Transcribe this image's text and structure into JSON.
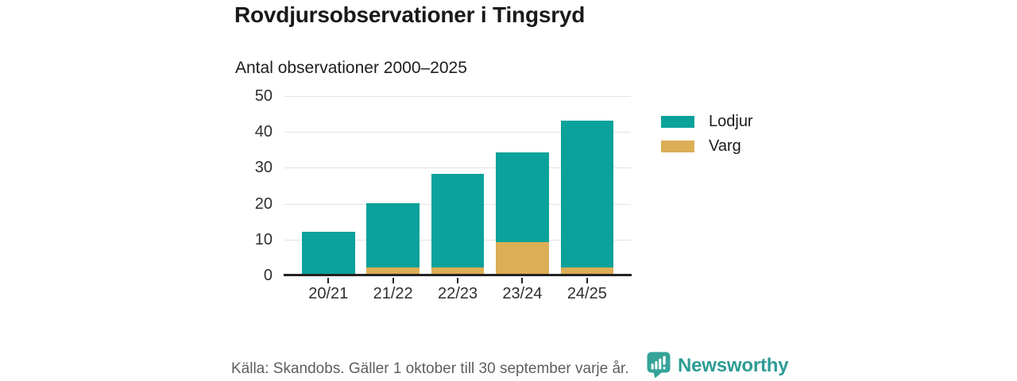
{
  "title": "Rovdjursobservationer i Tingsryd",
  "subtitle": "Antal observationer 2000–2025",
  "chart_data": {
    "type": "bar",
    "stacked": true,
    "title": "Rovdjursobservationer i Tingsryd",
    "subtitle": "Antal observationer 2000–2025",
    "categories": [
      "20/21",
      "21/22",
      "22/23",
      "23/24",
      "24/25"
    ],
    "series": [
      {
        "name": "Lodjur",
        "color": "#0aa29a",
        "stack_level": 1,
        "values": [
          12,
          18,
          26,
          25,
          41
        ]
      },
      {
        "name": "Varg",
        "color": "#dcae55",
        "stack_level": 0,
        "values": [
          0,
          2,
          2,
          9,
          2
        ]
      }
    ],
    "totals": [
      12,
      20,
      28,
      34,
      43
    ],
    "xlabel": "",
    "ylabel": "",
    "ylim": [
      0,
      50
    ],
    "yticks": [
      0,
      10,
      20,
      30,
      40,
      50
    ],
    "grid": true,
    "legend_position": "right"
  },
  "legend": {
    "items": [
      {
        "label": "Lodjur",
        "color": "#0aa29a"
      },
      {
        "label": "Varg",
        "color": "#dcae55"
      }
    ]
  },
  "footer": {
    "source": "Källa: Skandobs. Gäller 1 oktober till 30 september varje år.",
    "brand": "Newsworthy"
  },
  "colors": {
    "lodjur": "#0aa29a",
    "varg": "#dcae55",
    "brand_teal": "#2d9c94",
    "brand_icon_teal": "#35a399",
    "axis": "#232323",
    "gridline": "#e3e3e3",
    "text_dark": "#191919",
    "text_muted": "#5e5e5e"
  }
}
